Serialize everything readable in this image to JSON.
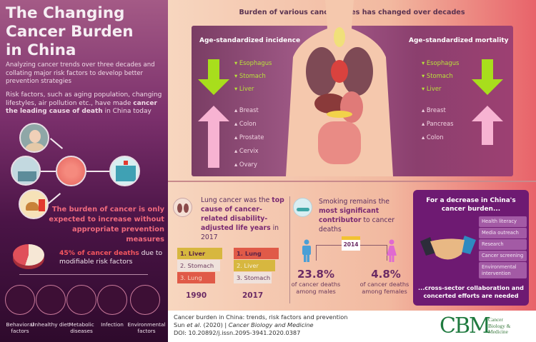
{
  "left": {
    "title": "The Changing Cancer Burden in China",
    "subtitle": "Analyzing cancer trends over three decades and collating major risk factors to develop better prevention strategies",
    "risk_text_pre": "Risk factors, such as aging population, changing lifestyles, air pollution etc., have made ",
    "risk_text_bold": "cancer the leading cause of death",
    "risk_text_post": " in China today",
    "burden_text": "The burden of cancer is only expected to increase without appropriate prevention measures",
    "pie_bold": "45% of cancer deaths",
    "pie_rest": " due to modifiable risk factors",
    "pie_fraction": 0.45,
    "factors": [
      "Behavioral factors",
      "Unhealthy diet",
      "Metabolic diseases",
      "Infection",
      "Environmental factors"
    ]
  },
  "burden": {
    "heading": "Burden of various cancer types has changed over decades",
    "incidence": {
      "title": "Age-standardized incidence",
      "decreased": [
        "Esophagus",
        "Stomach",
        "Liver"
      ],
      "increased": [
        "Breast",
        "Colon",
        "Prostate",
        "Cervix",
        "Ovary"
      ]
    },
    "mortality": {
      "title": "Age-standardized mortality",
      "decreased": [
        "Esophagus",
        "Stomach",
        "Liver"
      ],
      "increased": [
        "Breast",
        "Pancreas",
        "Colon"
      ]
    }
  },
  "lung": {
    "text_pre": "Lung cancer was the ",
    "text_bold": "top cause of cancer-related disability-adjusted life years",
    "text_post": " in 2017",
    "rank_1990": [
      "1. Liver",
      "2. Stomach",
      "3. Lung"
    ],
    "rank_2017": [
      "1. Lung",
      "2. Liver",
      "3. Stomach"
    ],
    "year_a": "1990",
    "year_b": "2017"
  },
  "smoking": {
    "text_pre": "Smoking remains the ",
    "text_bold": "most significant contributor",
    "text_post": " to cancer deaths",
    "year": "2014",
    "male_pct": "23.8%",
    "male_caption": "of cancer deaths among males",
    "female_pct": "4.8%",
    "female_caption": "of cancer deaths among females"
  },
  "decrease": {
    "title": "For a decrease in China's cancer burden...",
    "items": [
      "Health literacy",
      "Media outreach",
      "Research",
      "Cancer screening",
      "Environmental intervention"
    ],
    "footer": "...cross-sector collaboration and concerted efforts are needed"
  },
  "footer": {
    "title": "Cancer burden in China: trends, risk factors and prevention",
    "authors": "Sun ",
    "etal": "et al.",
    "year": " (2020) | ",
    "journal": "Cancer Biology and Medicine",
    "doi": "DOI: 10.20892/j.issn.2095-3941.2020.0387",
    "logo_letters": "CBM",
    "logo_text": "Cancer Biology & Medicine"
  },
  "colors": {
    "purple": "#6e1a72",
    "green": "#b9e23a",
    "pink": "#f6b4d0",
    "red": "#e0505a"
  }
}
